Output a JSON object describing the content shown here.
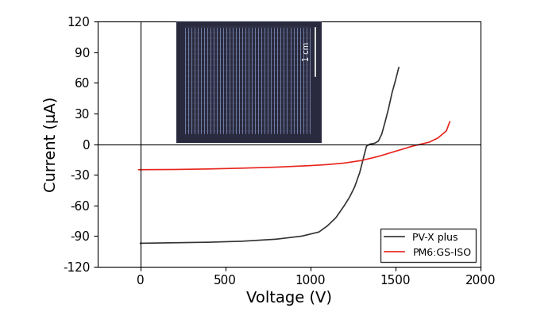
{
  "chart_data": {
    "type": "line",
    "x_label": "Voltage (V)",
    "y_label": "Current (μA)",
    "annotations": [
      "1 cm"
    ],
    "xlim": [
      -250,
      2000
    ],
    "xticks": [
      0,
      500,
      1000,
      1500,
      2000
    ],
    "ylim": [
      -120,
      120
    ],
    "yticks": [
      -120,
      -90,
      -60,
      -30,
      0,
      30,
      60,
      90,
      120
    ],
    "legend": "lower right",
    "series": [
      {
        "name": "PV-X plus",
        "color": "#333333",
        "x": [
          0,
          200,
          400,
          600,
          800,
          950,
          1050,
          1100,
          1150,
          1200,
          1230,
          1260,
          1290,
          1310,
          1330,
          1350,
          1380,
          1400,
          1420,
          1440,
          1460,
          1480,
          1500,
          1520
        ],
        "values": [
          -97,
          -96.5,
          -96,
          -95,
          -93,
          -90,
          -86,
          -80,
          -72,
          -60,
          -52,
          -42,
          -28,
          -15,
          -2,
          0,
          1,
          3,
          10,
          22,
          35,
          50,
          62,
          75
        ]
      },
      {
        "name": "PM6:GS-ISO",
        "color": "#e8251e",
        "x": [
          -10,
          200,
          400,
          600,
          800,
          1000,
          1100,
          1200,
          1300,
          1400,
          1450,
          1500,
          1550,
          1600,
          1650,
          1700,
          1750,
          1800,
          1820
        ],
        "values": [
          -25,
          -24.8,
          -24.3,
          -23.5,
          -22.5,
          -21,
          -20,
          -18.5,
          -16,
          -12,
          -9.5,
          -7,
          -4.5,
          -2,
          0,
          2,
          6,
          13,
          22
        ]
      }
    ]
  }
}
